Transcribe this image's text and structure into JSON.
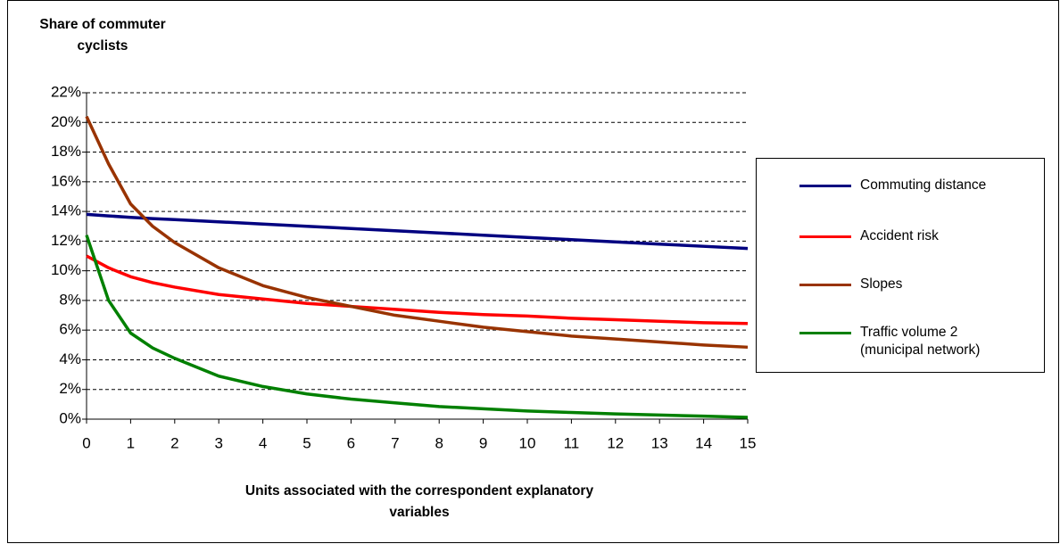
{
  "chart_data": {
    "type": "line",
    "title": "Share of commuter cyclists",
    "x_label": "Units associated with the correspondent explanatory variables",
    "x": [
      0,
      0.5,
      1,
      1.5,
      2,
      3,
      4,
      5,
      6,
      7,
      8,
      9,
      10,
      11,
      12,
      13,
      14,
      15
    ],
    "xlim": [
      0,
      15
    ],
    "xticks": [
      0,
      1,
      2,
      3,
      4,
      5,
      6,
      7,
      8,
      9,
      10,
      11,
      12,
      13,
      14,
      15
    ],
    "ylim": [
      0,
      22
    ],
    "yticks": [
      {
        "value": 0,
        "label": "0%"
      },
      {
        "value": 2,
        "label": "2%"
      },
      {
        "value": 4,
        "label": "4%"
      },
      {
        "value": 6,
        "label": "6%"
      },
      {
        "value": 8,
        "label": "8%"
      },
      {
        "value": 10,
        "label": "10%"
      },
      {
        "value": 12,
        "label": "12%"
      },
      {
        "value": 14,
        "label": "14%"
      },
      {
        "value": 16,
        "label": "16%"
      },
      {
        "value": 18,
        "label": "18%"
      },
      {
        "value": 20,
        "label": "20%"
      },
      {
        "value": 22,
        "label": "22%"
      }
    ],
    "grid": true,
    "series": [
      {
        "name": "Commuting distance",
        "color": "#000080",
        "values": [
          13.8,
          13.7,
          13.6,
          13.52,
          13.45,
          13.3,
          13.15,
          13.0,
          12.85,
          12.7,
          12.55,
          12.4,
          12.25,
          12.1,
          11.95,
          11.8,
          11.65,
          11.5
        ]
      },
      {
        "name": "Accident risk",
        "color": "#ff0000",
        "values": [
          11.0,
          10.2,
          9.6,
          9.2,
          8.9,
          8.4,
          8.1,
          7.8,
          7.6,
          7.4,
          7.2,
          7.05,
          6.95,
          6.8,
          6.7,
          6.6,
          6.5,
          6.45
        ]
      },
      {
        "name": "Slopes",
        "color": "#993300",
        "values": [
          20.4,
          17.2,
          14.5,
          13.0,
          11.9,
          10.2,
          9.0,
          8.2,
          7.6,
          7.0,
          6.6,
          6.2,
          5.9,
          5.6,
          5.4,
          5.2,
          5.0,
          4.85
        ]
      },
      {
        "name": "Traffic volume 2\n(municipal network)",
        "color": "#008000",
        "values": [
          12.4,
          8.0,
          5.8,
          4.8,
          4.1,
          2.9,
          2.2,
          1.7,
          1.35,
          1.1,
          0.85,
          0.7,
          0.55,
          0.45,
          0.35,
          0.28,
          0.2,
          0.12
        ]
      }
    ]
  }
}
